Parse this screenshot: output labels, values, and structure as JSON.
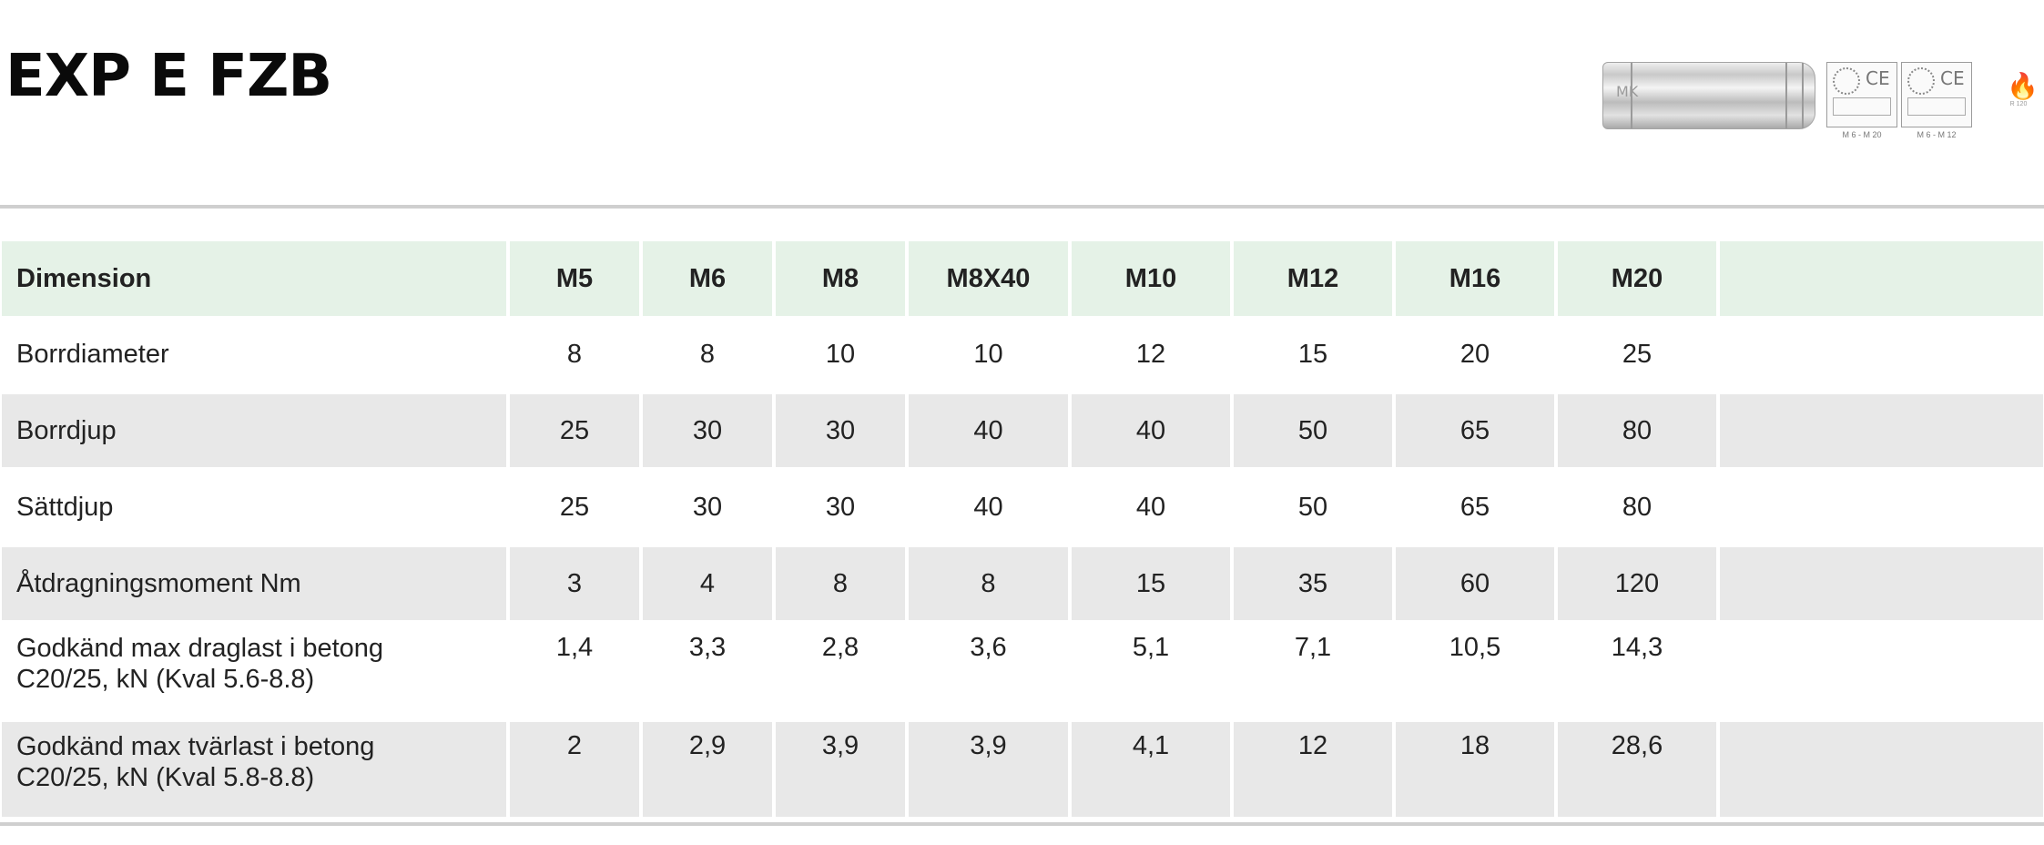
{
  "title": "EXP E FZB",
  "product_image": {
    "anchor_mark": "MK",
    "certificates": [
      {
        "range": "M 6 - M 20"
      },
      {
        "range": "M 6 - M 12"
      }
    ],
    "ce_mark": "CE",
    "fire_label": "R 120"
  },
  "table": {
    "header": {
      "label": "Dimension",
      "columns": [
        "M5",
        "M6",
        "M8",
        "M8X40",
        "M10",
        "M12",
        "M16",
        "M20",
        ""
      ]
    },
    "rows": [
      {
        "label": "Borrdiameter",
        "values": [
          "8",
          "8",
          "10",
          "10",
          "12",
          "15",
          "20",
          "25",
          ""
        ]
      },
      {
        "label": "Borrdjup",
        "values": [
          "25",
          "30",
          "30",
          "40",
          "40",
          "50",
          "65",
          "80",
          ""
        ]
      },
      {
        "label": "Sättdjup",
        "values": [
          "25",
          "30",
          "30",
          "40",
          "40",
          "50",
          "65",
          "80",
          ""
        ]
      },
      {
        "label": "Åtdragningsmoment Nm",
        "values": [
          "3",
          "4",
          "8",
          "8",
          "15",
          "35",
          "60",
          "120",
          ""
        ]
      },
      {
        "label_line1": "Godkänd max draglast i betong",
        "label_line2": "C20/25, kN (Kval 5.6-8.8)",
        "values": [
          "1,4",
          "3,3",
          "2,8",
          "3,6",
          "5,1",
          "7,1",
          "10,5",
          "14,3",
          ""
        ]
      },
      {
        "label_line1": "Godkänd max tvärlast i betong",
        "label_line2": "C20/25, kN (Kval 5.8-8.8)",
        "values": [
          "2",
          "2,9",
          "3,9",
          "3,9",
          "4,1",
          "12",
          "18",
          "28,6",
          ""
        ]
      }
    ]
  },
  "colors": {
    "header_bg": "#e5f2e7",
    "shaded_row_bg": "#e8e8e8",
    "rule": "#cfcfcf"
  }
}
